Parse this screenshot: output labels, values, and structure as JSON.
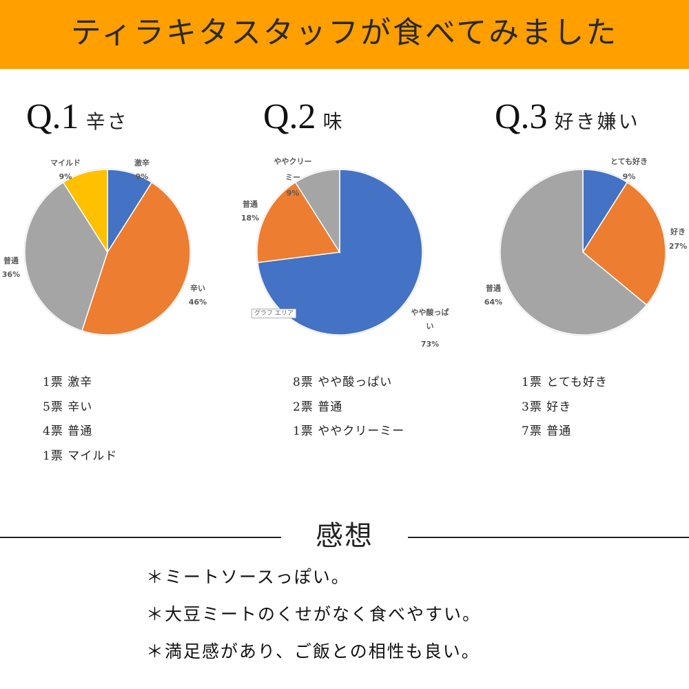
{
  "header": {
    "title": "ティラキタスタッフが食べてみました"
  },
  "questions": [
    {
      "number": "Q.1",
      "topic": "辛さ"
    },
    {
      "number": "Q.2",
      "topic": "味"
    },
    {
      "number": "Q.3",
      "topic": "好き嫌い"
    }
  ],
  "chart_area_tag": "グラフ エリア",
  "chart_data": [
    {
      "type": "pie",
      "title": "",
      "slices": [
        {
          "label": "激辛",
          "value": 9,
          "pct_label": "9%",
          "color": "#4472c4"
        },
        {
          "label": "辛い",
          "value": 46,
          "pct_label": "46%",
          "color": "#ed7d31"
        },
        {
          "label": "普通",
          "value": 36,
          "pct_label": "36%",
          "color": "#a5a5a5"
        },
        {
          "label": "マイルド",
          "value": 9,
          "pct_label": "9%",
          "color": "#ffc000"
        }
      ]
    },
    {
      "type": "pie",
      "title": "",
      "slices": [
        {
          "label": "やや酸っぱい",
          "value": 73,
          "pct_label": "73%",
          "color": "#4472c4"
        },
        {
          "label": "普通",
          "value": 18,
          "pct_label": "18%",
          "color": "#ed7d31"
        },
        {
          "label": "ややクリーミー",
          "value": 9,
          "pct_label": "9%",
          "color": "#a5a5a5"
        }
      ]
    },
    {
      "type": "pie",
      "title": "",
      "slices": [
        {
          "label": "とても好き",
          "value": 9,
          "pct_label": "9%",
          "color": "#4472c4"
        },
        {
          "label": "好き",
          "value": 27,
          "pct_label": "27%",
          "color": "#ed7d31"
        },
        {
          "label": "普通",
          "value": 64,
          "pct_label": "64%",
          "color": "#a5a5a5"
        }
      ]
    }
  ],
  "votes": [
    [
      "1票 激辛",
      "5票 辛い",
      "4票 普通",
      "1票 マイルド"
    ],
    [
      "8票 やや酸っぱい",
      "2票 普通",
      "1票 ややクリーミー"
    ],
    [
      "1票 とても好き",
      "3票 好き",
      "7票 普通"
    ]
  ],
  "impressions": {
    "title": "感想",
    "lines": [
      "＊ミートソースっぽい。",
      "＊大豆ミートのくせがなく食べやすい。",
      "＊満足感があり、ご飯との相性も良い。"
    ]
  }
}
